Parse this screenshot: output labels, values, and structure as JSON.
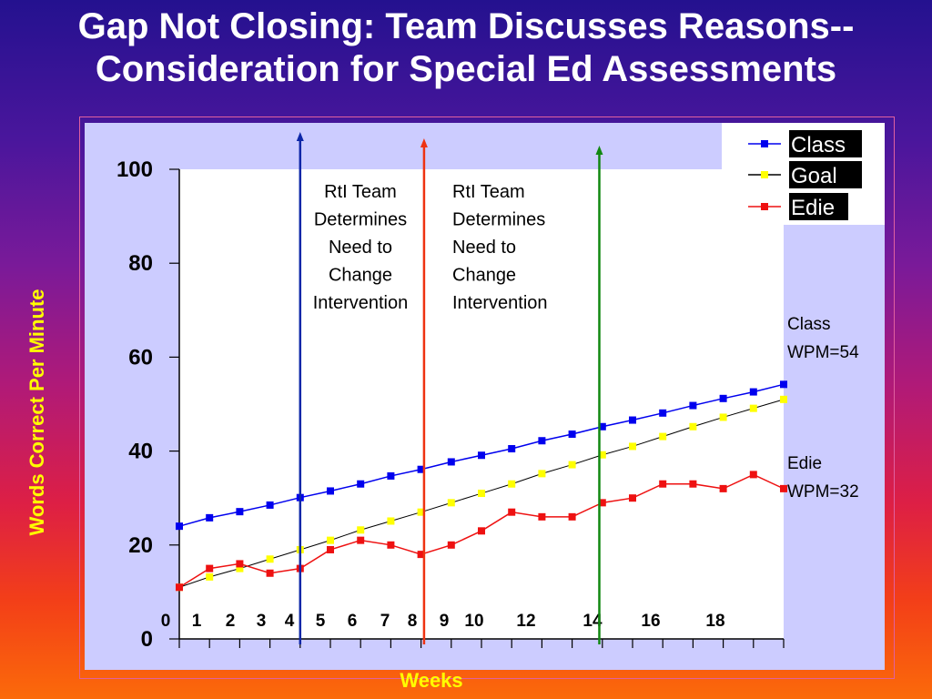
{
  "slide": {
    "title_line1": "Gap Not Closing: Team Discusses Reasons--",
    "title_line2": "Consideration for Special Ed Assessments"
  },
  "colors": {
    "class": "#0000ee",
    "goal": "#ffff00",
    "edie": "#ee1111",
    "marker_blue": "#0d27a8",
    "marker_red": "#ee3311",
    "marker_green": "#118811",
    "plot_bg": "#ccccff",
    "plot_area": "#ffffff",
    "y_title": "#ffff00"
  },
  "chart_data": {
    "type": "line",
    "title": "",
    "xlabel": "Weeks",
    "ylabel": "Words Correct Per Minute",
    "ylim": [
      0,
      100
    ],
    "y_ticks": [
      "0",
      "20",
      "40",
      "60",
      "80",
      "100"
    ],
    "x_tick_labels": [
      "0",
      "1",
      "2",
      "3",
      "4",
      "5",
      "6",
      "7",
      "8",
      "9",
      "10",
      "12",
      "14",
      "16",
      "18"
    ],
    "grid": false,
    "legend_position": "top-right",
    "x": [
      0,
      1,
      2,
      3,
      4,
      5,
      6,
      7,
      8,
      9,
      10,
      11,
      12,
      13,
      14,
      15,
      16,
      17,
      18,
      19,
      20
    ],
    "series": [
      {
        "name": "Class",
        "values": [
          24,
          25.8,
          27.1,
          28.5,
          30.1,
          31.5,
          33,
          34.7,
          36.1,
          37.7,
          39.1,
          40.5,
          42.2,
          43.6,
          45.2,
          46.6,
          48.1,
          49.7,
          51.2,
          52.6,
          54.2
        ]
      },
      {
        "name": "Goal",
        "values": [
          11,
          13.2,
          15,
          17,
          19,
          21,
          23.2,
          25.1,
          27,
          29,
          31,
          33,
          35.2,
          37.1,
          39.2,
          41,
          43.1,
          45.2,
          47.2,
          49.1,
          51
        ]
      },
      {
        "name": "Edie",
        "values": [
          11,
          15,
          16,
          14,
          15,
          19,
          21,
          20,
          18,
          20,
          23,
          27,
          26,
          26,
          29,
          30,
          33,
          33,
          32,
          35,
          32
        ]
      }
    ],
    "vertical_markers": [
      {
        "x": 4,
        "color": "#0d27a8"
      },
      {
        "x": 8.1,
        "color": "#ee3311"
      },
      {
        "x": 13.9,
        "color": "#118811"
      }
    ],
    "annotations": [
      {
        "lines": [
          "RtI Team",
          "Determines",
          "Need to",
          "Change",
          "Intervention"
        ],
        "align": "center"
      },
      {
        "lines": [
          "RtI Team",
          "Determines",
          "Need to",
          "Change",
          "Intervention"
        ],
        "align": "left"
      }
    ],
    "side_labels": {
      "class": [
        "Class",
        "WPM=54"
      ],
      "edie": [
        "Edie",
        "WPM=32"
      ]
    }
  }
}
